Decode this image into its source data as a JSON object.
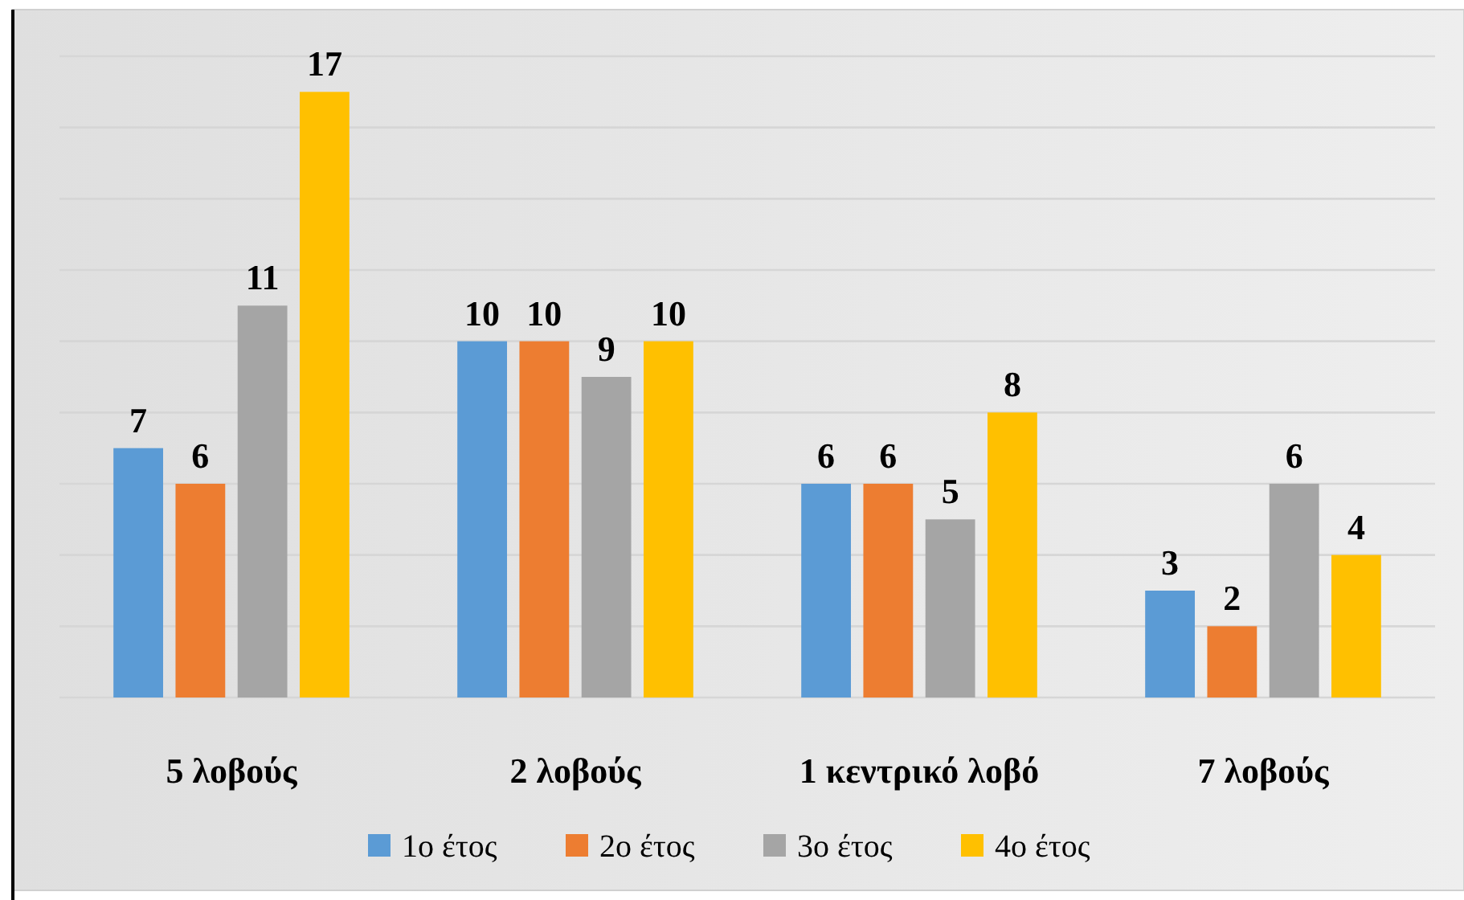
{
  "chart_data": {
    "type": "bar",
    "categories": [
      "5 λοβούς",
      "2 λοβούς",
      "1 κεντρικό λοβό",
      "7 λοβούς"
    ],
    "series": [
      {
        "name": "1ο έτος",
        "color": "#5b9bd5",
        "values": [
          7,
          10,
          6,
          3
        ]
      },
      {
        "name": "2ο έτος",
        "color": "#ed7d31",
        "values": [
          6,
          10,
          6,
          2
        ]
      },
      {
        "name": "3ο έτος",
        "color": "#a5a5a5",
        "values": [
          11,
          9,
          5,
          6
        ]
      },
      {
        "name": "4ο έτος",
        "color": "#ffc000",
        "values": [
          17,
          10,
          8,
          4
        ]
      }
    ],
    "ylim": [
      0,
      18
    ],
    "yticks": [
      {
        "value": 0,
        "label": null
      },
      {
        "value": 2,
        "label": null
      },
      {
        "value": 4,
        "label": null
      },
      {
        "value": 6,
        "label": null
      },
      {
        "value": 8,
        "label": null
      },
      {
        "value": 10,
        "label": null
      },
      {
        "value": 12,
        "label": null
      },
      {
        "value": 14,
        "label": null
      },
      {
        "value": 16,
        "label": null
      },
      {
        "value": 18,
        "label": null
      }
    ],
    "tick_labels": "x",
    "grid": "y",
    "legend": "bottom",
    "data_labels": true
  }
}
